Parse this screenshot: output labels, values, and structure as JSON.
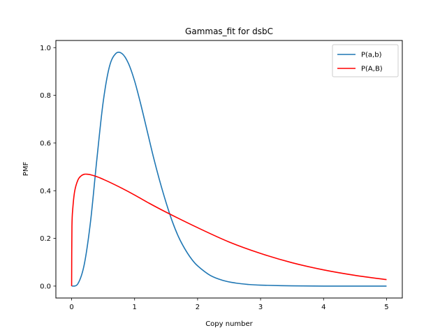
{
  "chart_data": {
    "type": "line",
    "title": "Gammas_fit for dsbC",
    "xlabel": "Copy number",
    "ylabel": "PMF",
    "xlim": [
      -0.25,
      5.25
    ],
    "ylim": [
      -0.05,
      1.03
    ],
    "xticks": [
      0,
      1,
      2,
      3,
      4,
      5
    ],
    "xtick_labels": [
      "0",
      "1",
      "2",
      "3",
      "4",
      "5"
    ],
    "yticks": [
      0.0,
      0.2,
      0.4,
      0.6,
      0.8,
      1.0
    ],
    "ytick_labels": [
      "0.0",
      "0.2",
      "0.4",
      "0.6",
      "0.8",
      "1.0"
    ],
    "grid": false,
    "legend_position": "top-right",
    "series": [
      {
        "name": "P(a,b)",
        "color": "#1f77b4",
        "x": [
          0,
          0.1,
          0.2,
          0.3,
          0.4,
          0.5,
          0.6,
          0.7,
          0.8,
          0.9,
          1.0,
          1.1,
          1.2,
          1.3,
          1.4,
          1.5,
          1.6,
          1.7,
          1.8,
          1.9,
          2.0,
          2.2,
          2.4,
          2.6,
          2.8,
          3.0,
          3.5,
          4.0,
          4.5,
          5.0
        ],
        "values": [
          0.0,
          0.01,
          0.09,
          0.27,
          0.53,
          0.77,
          0.92,
          0.975,
          0.975,
          0.935,
          0.86,
          0.76,
          0.65,
          0.54,
          0.44,
          0.35,
          0.27,
          0.205,
          0.155,
          0.115,
          0.085,
          0.045,
          0.024,
          0.013,
          0.007,
          0.004,
          0.001,
          0.0,
          0.0,
          0.0
        ]
      },
      {
        "name": "P(A,B)",
        "color": "#ff0000",
        "x": [
          0,
          0.005,
          0.02,
          0.05,
          0.1,
          0.15,
          0.2,
          0.25,
          0.3,
          0.4,
          0.5,
          0.6,
          0.8,
          1.0,
          1.2,
          1.5,
          2.0,
          2.5,
          3.0,
          3.5,
          4.0,
          4.5,
          5.0
        ],
        "values": [
          0.0,
          0.25,
          0.33,
          0.4,
          0.445,
          0.462,
          0.469,
          0.469,
          0.467,
          0.459,
          0.448,
          0.436,
          0.41,
          0.382,
          0.352,
          0.31,
          0.245,
          0.185,
          0.137,
          0.098,
          0.068,
          0.045,
          0.027
        ]
      }
    ]
  }
}
